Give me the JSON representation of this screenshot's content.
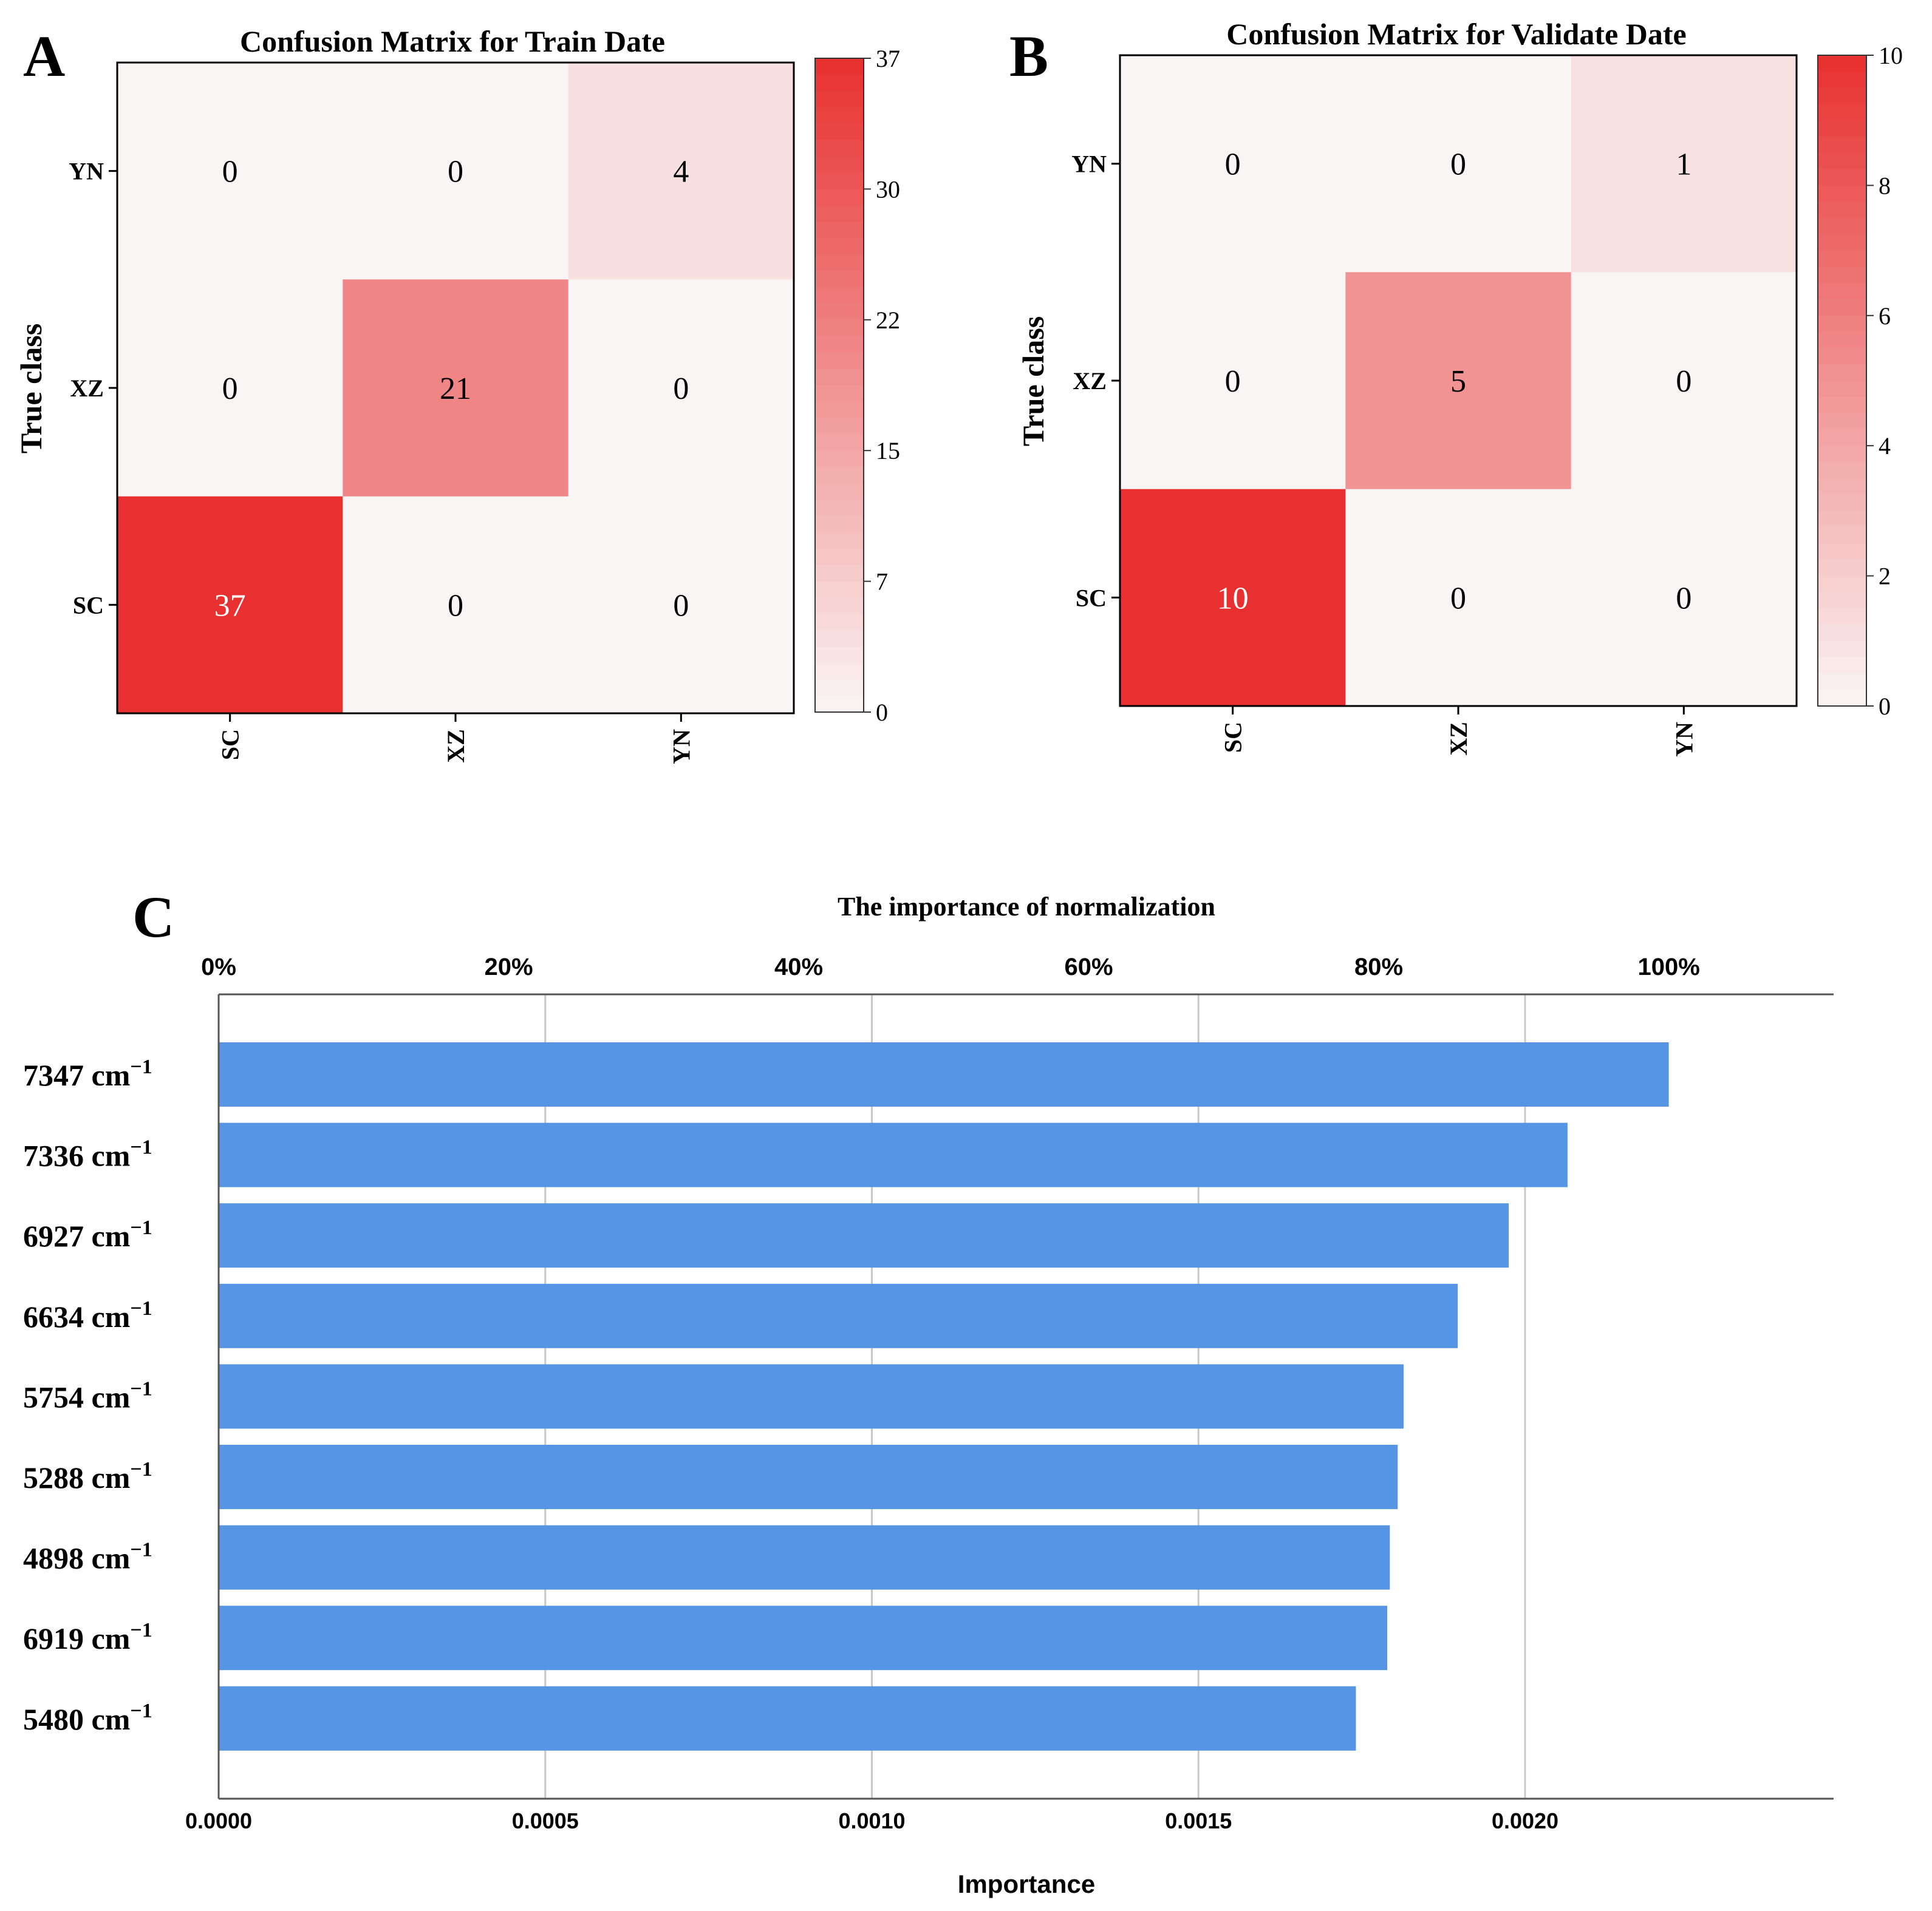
{
  "panels": {
    "a": "A",
    "b": "B",
    "c": "C"
  },
  "colors": {
    "cm_low": "#faf5f5",
    "cm_high": "#e83030",
    "bar_fill": "#5595e3",
    "grid": "#c8c8c8",
    "axis": "#000000"
  },
  "chart_data": [
    {
      "type": "heatmap",
      "id": "train",
      "title": "Confusion Matrix for Train Date",
      "ylabel": "True class",
      "xlabel": "",
      "rows": [
        "YN",
        "XZ",
        "SC"
      ],
      "cols": [
        "SC",
        "XZ",
        "YN"
      ],
      "values": [
        [
          0,
          0,
          4
        ],
        [
          0,
          21,
          0
        ],
        [
          37,
          0,
          0
        ]
      ],
      "colorbar": {
        "min": 0,
        "max": 37,
        "ticks": [
          "0",
          "7",
          "15",
          "22",
          "30",
          "37"
        ]
      }
    },
    {
      "type": "heatmap",
      "id": "validate",
      "title": "Confusion Matrix for Validate Date",
      "ylabel": "True class",
      "xlabel": "",
      "rows": [
        "YN",
        "XZ",
        "SC"
      ],
      "cols": [
        "SC",
        "XZ",
        "YN"
      ],
      "values": [
        [
          0,
          0,
          1
        ],
        [
          0,
          5,
          0
        ],
        [
          10,
          0,
          0
        ]
      ],
      "colorbar": {
        "min": 0,
        "max": 10,
        "ticks": [
          "0",
          "2",
          "4",
          "6",
          "8",
          "10"
        ]
      }
    },
    {
      "type": "bar",
      "orientation": "horizontal",
      "title": "The importance of normalization",
      "xlabel": "Importance",
      "ylabel": "",
      "categories": [
        "7347",
        "7336",
        "6927",
        "6634",
        "5754",
        "5288",
        "4898",
        "6919",
        "5480"
      ],
      "unit_base": "cm",
      "unit_exp": "−1",
      "values": [
        0.00222,
        0.002065,
        0.001975,
        0.001897,
        0.001814,
        0.001805,
        0.001793,
        0.001789,
        0.001741
      ],
      "xlim": [
        0,
        0.00247
      ],
      "xticks": [
        "0.0000",
        "0.0005",
        "0.0010",
        "0.0015",
        "0.0020"
      ],
      "xtick_values": [
        0,
        0.0005,
        0.001,
        0.0015,
        0.002
      ],
      "top_axis": {
        "ticks": [
          "0%",
          "20%",
          "40%",
          "60%",
          "80%",
          "100%"
        ],
        "tick_values": [
          0,
          0.2,
          0.4,
          0.6,
          0.8,
          1.0
        ],
        "max_value": 0.00222
      },
      "grid": true
    }
  ]
}
